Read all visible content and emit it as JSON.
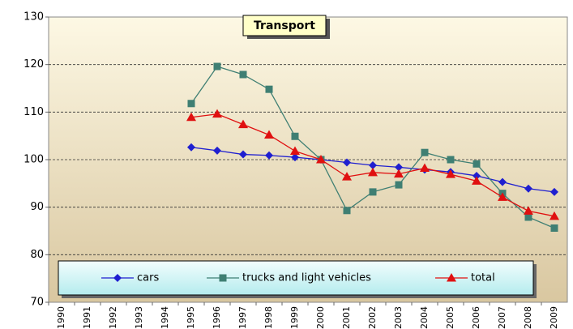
{
  "chart_data": {
    "type": "line",
    "title": "Transport",
    "categories": [
      "1990",
      "1991",
      "1992",
      "1993",
      "1994",
      "1995",
      "1996",
      "1997",
      "1998",
      "1999",
      "2000",
      "2001",
      "2002",
      "2003",
      "2004",
      "2005",
      "2006",
      "2007",
      "2008",
      "2009"
    ],
    "series": [
      {
        "name": "cars",
        "color": "#1f1fd0",
        "marker": "diamond",
        "values": [
          null,
          null,
          null,
          null,
          null,
          102.6,
          101.9,
          101.1,
          100.9,
          100.5,
          100,
          99.4,
          98.8,
          98.4,
          97.9,
          97.4,
          96.6,
          95.3,
          93.9,
          93.2
        ]
      },
      {
        "name": "trucks and light vehicles",
        "color": "#3f7f73",
        "marker": "square",
        "values": [
          null,
          null,
          null,
          null,
          null,
          111.8,
          119.6,
          117.9,
          114.8,
          104.9,
          100,
          89.3,
          93.2,
          94.7,
          101.5,
          100,
          99.1,
          92.9,
          87.9,
          85.6
        ]
      },
      {
        "name": "total",
        "color": "#e01010",
        "marker": "triangle",
        "values": [
          null,
          null,
          null,
          null,
          null,
          108.9,
          109.6,
          107.4,
          105.2,
          101.8,
          100,
          96.4,
          97.3,
          97.0,
          98.2,
          96.9,
          95.5,
          92.1,
          89.2,
          88.1
        ]
      }
    ],
    "ylim": [
      70,
      130
    ],
    "yticks": [
      70,
      80,
      90,
      100,
      110,
      120,
      130
    ],
    "grid": true,
    "legend": "bottom"
  }
}
